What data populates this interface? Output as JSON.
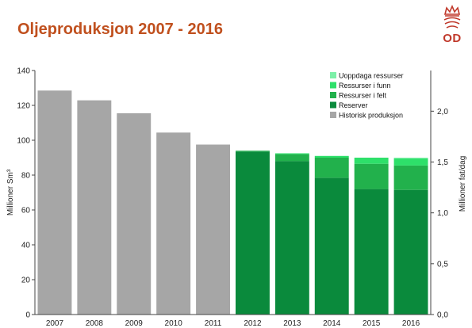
{
  "title": "Oljeproduksjon 2007 - 2016",
  "logo": {
    "text": "OD",
    "icon": "crown-icon",
    "color": "#c0392b"
  },
  "colors": {
    "historisk": "#a6a6a6",
    "reserver": "#0a8a3c",
    "felt": "#22b14c",
    "funn": "#2ee06a",
    "uoppdaga": "#7cf0a8"
  },
  "chart_data": {
    "type": "bar",
    "stacked": true,
    "categories": [
      "2007",
      "2008",
      "2009",
      "2010",
      "2011",
      "2012",
      "2013",
      "2014",
      "2015",
      "2016"
    ],
    "series": [
      {
        "name": "Historisk produksjon",
        "key": "historisk",
        "values": [
          128.5,
          122.9,
          115.5,
          104.4,
          97.5,
          0,
          0,
          0,
          0,
          0
        ]
      },
      {
        "name": "Reserver",
        "key": "reserver",
        "values": [
          0,
          0,
          0,
          0,
          0,
          93.5,
          88,
          78.5,
          72,
          71.5
        ]
      },
      {
        "name": "Ressurser i felt",
        "key": "felt",
        "values": [
          0,
          0,
          0,
          0,
          0,
          0.5,
          4,
          11.5,
          14.5,
          14
        ]
      },
      {
        "name": "Ressurser i funn",
        "key": "funn",
        "values": [
          0,
          0,
          0,
          0,
          0,
          0,
          0.5,
          1,
          3.5,
          4
        ]
      },
      {
        "name": "Uoppdaga ressurser",
        "key": "uoppdaga",
        "values": [
          0,
          0,
          0,
          0,
          0,
          0,
          0,
          0,
          0,
          0.5
        ]
      }
    ],
    "legend_order": [
      "uoppdaga",
      "funn",
      "felt",
      "reserver",
      "historisk"
    ],
    "legend_position": "top-right",
    "ylabel": "Millioner Sm³",
    "ylim": [
      0,
      140
    ],
    "yticks": [
      0,
      20,
      40,
      60,
      80,
      100,
      120,
      140
    ],
    "y2label": "Millioner fat/dag",
    "y2ticks": [
      {
        "label": "0,0",
        "value": 0
      },
      {
        "label": "0,5",
        "value": 0.5
      },
      {
        "label": "1,0",
        "value": 1.0
      },
      {
        "label": "1,5",
        "value": 1.5
      },
      {
        "label": "2,0",
        "value": 2.0
      }
    ],
    "y2lim": [
      0,
      2.4
    ],
    "grid": false
  }
}
